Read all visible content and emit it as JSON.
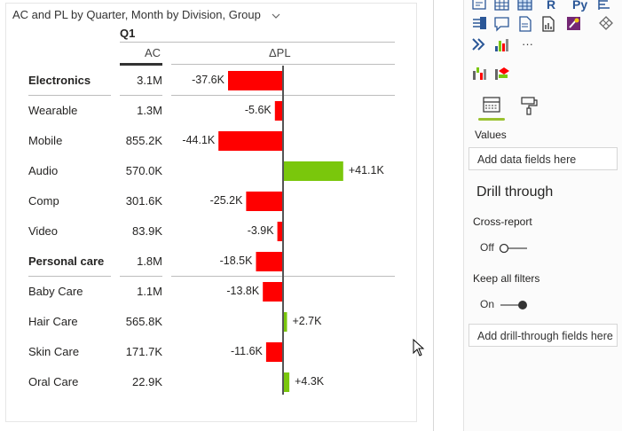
{
  "visual": {
    "title": "AC and PL by Quarter, Month by Division, Group",
    "quarter": "Q1",
    "col_ac": "AC",
    "col_pl": "ΔPL",
    "rows": [
      {
        "name": "Electronics",
        "ac": "3.1M",
        "pl": "-37.6K",
        "value": -37.6,
        "bold": true
      },
      {
        "name": "Wearable",
        "ac": "1.3M",
        "pl": "-5.6K",
        "value": -5.6,
        "bold": false
      },
      {
        "name": "Mobile",
        "ac": "855.2K",
        "pl": "-44.1K",
        "value": -44.1,
        "bold": false
      },
      {
        "name": "Audio",
        "ac": "570.0K",
        "pl": "+41.1K",
        "value": 41.1,
        "bold": false
      },
      {
        "name": "Comp",
        "ac": "301.6K",
        "pl": "-25.2K",
        "value": -25.2,
        "bold": false
      },
      {
        "name": "Video",
        "ac": "83.9K",
        "pl": "-3.9K",
        "value": -3.9,
        "bold": false
      },
      {
        "name": "Personal care",
        "ac": "1.8M",
        "pl": "-18.5K",
        "value": -18.5,
        "bold": true
      },
      {
        "name": "Baby Care",
        "ac": "1.1M",
        "pl": "-13.8K",
        "value": -13.8,
        "bold": false
      },
      {
        "name": "Hair Care",
        "ac": "565.8K",
        "pl": "+2.7K",
        "value": 2.7,
        "bold": false
      },
      {
        "name": "Skin Care",
        "ac": "171.7K",
        "pl": "-11.6K",
        "value": -11.6,
        "bold": false
      },
      {
        "name": "Oral Care",
        "ac": "22.9K",
        "pl": "+4.3K",
        "value": 4.3,
        "bold": false
      }
    ],
    "colors": {
      "negative": "#ff0000",
      "positive": "#7ac70c",
      "axis": "#555555"
    }
  },
  "pane": {
    "values_label": "Values",
    "values_placeholder": "Add data fields here",
    "drill_title": "Drill through",
    "cross_report_label": "Cross-report",
    "cross_report_state": "Off",
    "keep_filters_label": "Keep all filters",
    "keep_filters_state": "On",
    "drill_placeholder": "Add drill-through fields here",
    "icons": [
      "decomposition-tree-icon",
      "table-icon",
      "matrix-icon",
      "r-visual-icon",
      "python-visual-icon",
      "key-influencers-icon",
      "flow-icon",
      "qna-icon",
      "paginated-report-icon",
      "smart-narrative-icon",
      "power-apps-icon",
      "diamond-icon",
      "chevron-visual-icon",
      "custom-visual-icon",
      "more-visuals-icon",
      "custom-visual-1-icon",
      "custom-visual-2-icon",
      "fields-tab-icon",
      "format-tab-icon"
    ],
    "more_label": "···",
    "r_label": "R",
    "py_label": "Py"
  }
}
